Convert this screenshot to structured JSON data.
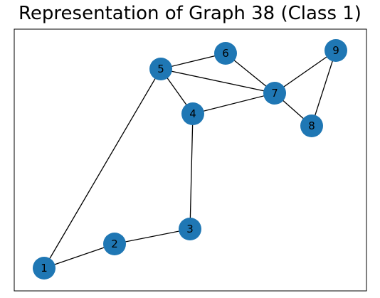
{
  "title": "Representation of Graph 38 (Class 1)",
  "node_color": "#1f77b4",
  "edge_color": "#000000",
  "nodes": [
    {
      "id": "1",
      "label": "1"
    },
    {
      "id": "2",
      "label": "2"
    },
    {
      "id": "3",
      "label": "3"
    },
    {
      "id": "4",
      "label": "4"
    },
    {
      "id": "5",
      "label": "5"
    },
    {
      "id": "6",
      "label": "6"
    },
    {
      "id": "7",
      "label": "7"
    },
    {
      "id": "8",
      "label": "8"
    },
    {
      "id": "9",
      "label": "9"
    }
  ],
  "edges": [
    [
      "1",
      "2"
    ],
    [
      "1",
      "5"
    ],
    [
      "2",
      "3"
    ],
    [
      "3",
      "4"
    ],
    [
      "4",
      "5"
    ],
    [
      "4",
      "7"
    ],
    [
      "5",
      "6"
    ],
    [
      "5",
      "7"
    ],
    [
      "6",
      "7"
    ],
    [
      "7",
      "8"
    ],
    [
      "7",
      "9"
    ],
    [
      "8",
      "9"
    ]
  ]
}
